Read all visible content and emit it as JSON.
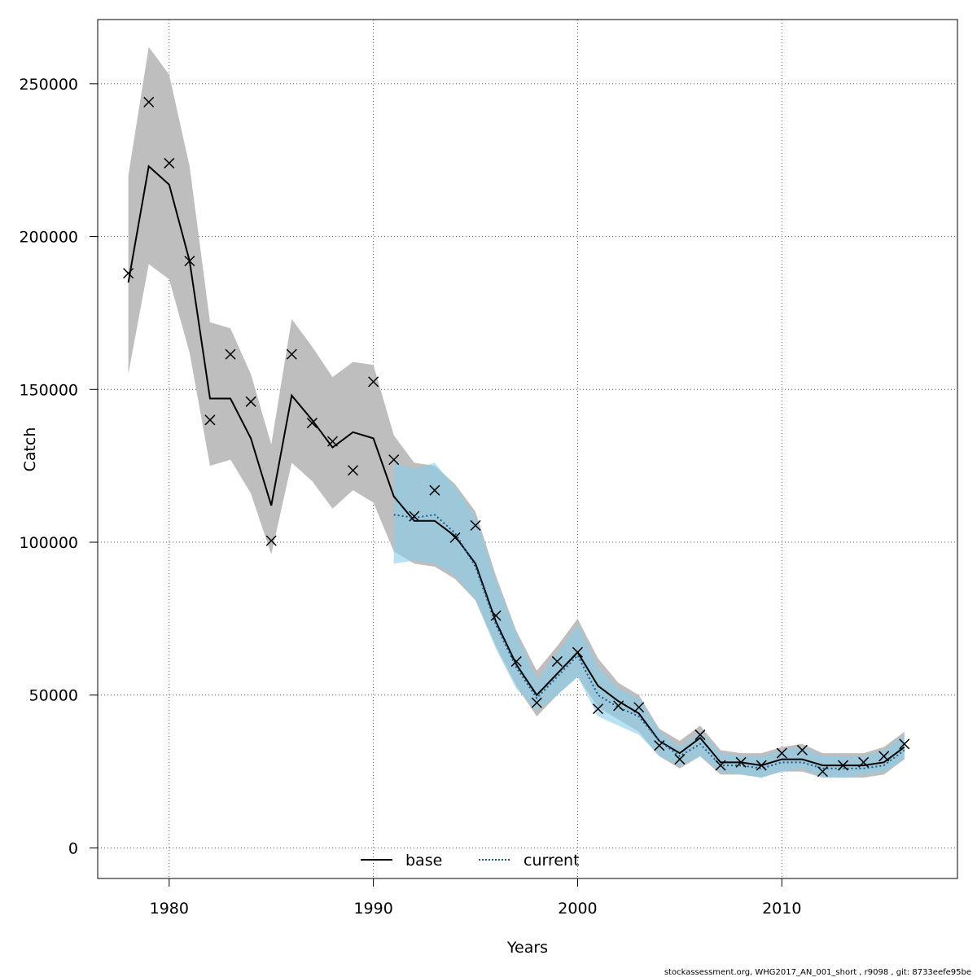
{
  "chart_data": {
    "type": "line",
    "xlabel": "Years",
    "ylabel": "Catch",
    "xlim": [
      1976.5,
      2018.6
    ],
    "ylim": [
      -10000,
      271000
    ],
    "xticks": [
      1980,
      1990,
      2000,
      2010
    ],
    "yticks": [
      0,
      50000,
      100000,
      150000,
      200000,
      250000
    ],
    "xtick_labels": [
      "1980",
      "1990",
      "2000",
      "2010"
    ],
    "ytick_labels": [
      "0",
      "50000",
      "100000",
      "150000",
      "200000",
      "250000"
    ],
    "grid": true,
    "legend": {
      "position": "bottom-center",
      "entries": [
        "base",
        "current"
      ]
    },
    "colors": {
      "base_band": "#bebebe",
      "current_band": "#87ceeb",
      "base_line": "#000000",
      "current_line": "#1a5a8a"
    },
    "series": [
      {
        "name": "base",
        "style": "solid",
        "x": [
          1978,
          1979,
          1980,
          1981,
          1982,
          1983,
          1984,
          1985,
          1986,
          1987,
          1988,
          1989,
          1990,
          1991,
          1992,
          1993,
          1994,
          1995,
          1996,
          1997,
          1998,
          1999,
          2000,
          2001,
          2002,
          2003,
          2004,
          2005,
          2006,
          2007,
          2008,
          2009,
          2010,
          2011,
          2012,
          2013,
          2014,
          2015,
          2016
        ],
        "values": [
          185000,
          223000,
          217000,
          192000,
          147000,
          147000,
          134000,
          112000,
          148000,
          140000,
          131000,
          136000,
          134000,
          115000,
          107000,
          107000,
          102000,
          93000,
          74000,
          60000,
          50000,
          57000,
          64000,
          53000,
          48000,
          44000,
          35000,
          31000,
          36000,
          28000,
          28000,
          27000,
          29000,
          29000,
          27000,
          27000,
          27000,
          28000,
          33000
        ],
        "lower": [
          155000,
          191000,
          186000,
          162000,
          125000,
          127000,
          116000,
          96000,
          126000,
          120000,
          111000,
          117000,
          113000,
          97000,
          93000,
          92000,
          88000,
          81000,
          66000,
          53000,
          43000,
          50000,
          56000,
          46000,
          42000,
          38000,
          30000,
          26000,
          30000,
          24000,
          24000,
          23000,
          25000,
          25000,
          23000,
          23000,
          23000,
          24000,
          29000
        ],
        "upper": [
          220000,
          262000,
          253000,
          223000,
          172000,
          170000,
          155000,
          132000,
          173000,
          164000,
          154000,
          159000,
          158000,
          135000,
          126000,
          125000,
          119000,
          110000,
          89000,
          71000,
          58000,
          66000,
          75000,
          62000,
          54000,
          50000,
          39000,
          35000,
          40000,
          32000,
          31000,
          31000,
          33000,
          34000,
          31000,
          31000,
          31000,
          33000,
          38000
        ]
      },
      {
        "name": "current",
        "style": "dotted",
        "x": [
          1991,
          1992,
          1993,
          1994,
          1995,
          1996,
          1997,
          1998,
          1999,
          2000,
          2001,
          2002,
          2003,
          2004,
          2005,
          2006,
          2007,
          2008,
          2009,
          2010,
          2011,
          2012,
          2013,
          2014,
          2015,
          2016
        ],
        "values": [
          109000,
          108000,
          109000,
          103000,
          92000,
          73000,
          59000,
          49000,
          56000,
          63000,
          50000,
          46000,
          43000,
          35000,
          30000,
          34000,
          27000,
          27000,
          26000,
          28000,
          28000,
          26000,
          26000,
          26000,
          27000,
          32000
        ],
        "lower": [
          93000,
          94000,
          93000,
          89000,
          81000,
          65000,
          52000,
          45000,
          50000,
          56000,
          43000,
          40000,
          37000,
          30000,
          27000,
          30000,
          25000,
          24000,
          23000,
          25000,
          26000,
          23000,
          23000,
          24000,
          25000,
          29000
        ],
        "upper": [
          126000,
          124000,
          126000,
          118000,
          108000,
          87000,
          70000,
          55000,
          64000,
          73000,
          59000,
          52000,
          49000,
          38000,
          33000,
          38000,
          31000,
          30000,
          30000,
          32000,
          33000,
          30000,
          30000,
          30000,
          32000,
          37000
        ]
      }
    ],
    "observations": {
      "marker": "x",
      "x": [
        1978,
        1979,
        1980,
        1981,
        1982,
        1983,
        1984,
        1985,
        1986,
        1987,
        1988,
        1989,
        1990,
        1991,
        1992,
        1993,
        1994,
        1995,
        1996,
        1997,
        1998,
        1999,
        2000,
        2001,
        2002,
        2003,
        2004,
        2005,
        2006,
        2007,
        2008,
        2009,
        2010,
        2011,
        2012,
        2013,
        2014,
        2015,
        2016
      ],
      "values": [
        188000,
        244000,
        224000,
        192000,
        140000,
        161500,
        146000,
        100500,
        161500,
        139000,
        133000,
        123500,
        152500,
        127000,
        108500,
        117000,
        101500,
        105500,
        76000,
        61000,
        47500,
        61000,
        64000,
        45500,
        46500,
        46000,
        33500,
        29000,
        37000,
        27000,
        28000,
        27000,
        31000,
        32000,
        25000,
        27000,
        28000,
        30000,
        34000
      ]
    }
  },
  "footer": {
    "text": "stockassessment.org, WHG2017_AN_001_short , r9098 , git: 8733eefe95be"
  }
}
